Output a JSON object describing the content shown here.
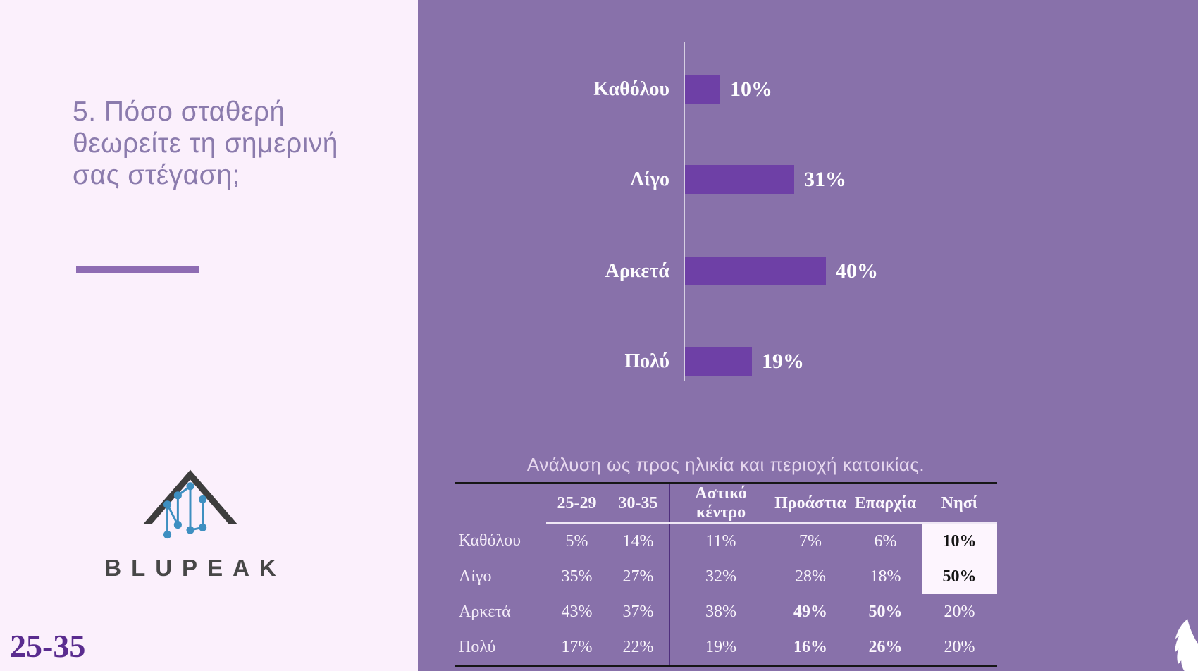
{
  "left_panel": {
    "question": "5. Πόσο σταθερή θεωρείτε τη σημερινή σας στέγαση;",
    "brand_name": "BLUPEAK",
    "age_group_label": "25-35"
  },
  "right_panel": {
    "table_title": "Ανάλυση ως προς ηλικία και περιοχή κατοικίας."
  },
  "colors": {
    "left_panel_bg": "#fbf0fc",
    "right_panel_bg": "#8871aa",
    "bar_fill": "#6e40a6",
    "accent_bar": "#8e6cb3",
    "question_text": "#8b7bad",
    "age_label_text": "#5a2c8f",
    "table_highlight_bg": "#fdf5fe",
    "logo_dark": "#3d3d3d",
    "logo_blue": "#3e8fc1"
  },
  "chart_data": {
    "type": "bar",
    "orientation": "horizontal",
    "title": "",
    "categories": [
      "Καθόλου",
      "Λίγο",
      "Αρκετά",
      "Πολύ"
    ],
    "values": [
      10,
      31,
      40,
      19
    ],
    "value_labels": [
      "10%",
      "31%",
      "40%",
      "19%"
    ],
    "xlim": [
      0,
      100
    ],
    "grid": "off",
    "legend": "none",
    "bar_color": "#6e40a6"
  },
  "table_data": {
    "type": "table",
    "title": "Ανάλυση ως προς ηλικία και περιοχή κατοικίας.",
    "columns": [
      "25-29",
      "30-35",
      "Αστικό κέντρο",
      "Προάστια",
      "Επαρχία",
      "Νησί"
    ],
    "rows": [
      {
        "label": "Καθόλου",
        "values": [
          "5%",
          "14%",
          "11%",
          "7%",
          "6%",
          "10%"
        ]
      },
      {
        "label": "Λίγο",
        "values": [
          "35%",
          "27%",
          "32%",
          "28%",
          "18%",
          "50%"
        ]
      },
      {
        "label": "Αρκετά",
        "values": [
          "43%",
          "37%",
          "38%",
          "49%",
          "50%",
          "20%"
        ]
      },
      {
        "label": "Πολύ",
        "values": [
          "17%",
          "22%",
          "19%",
          "16%",
          "26%",
          "20%"
        ]
      }
    ],
    "bold_cells": [
      [
        0,
        5
      ],
      [
        1,
        5
      ],
      [
        2,
        3
      ],
      [
        2,
        4
      ],
      [
        3,
        3
      ],
      [
        3,
        4
      ]
    ],
    "highlight_cells": [
      [
        0,
        5
      ],
      [
        1,
        5
      ]
    ]
  }
}
